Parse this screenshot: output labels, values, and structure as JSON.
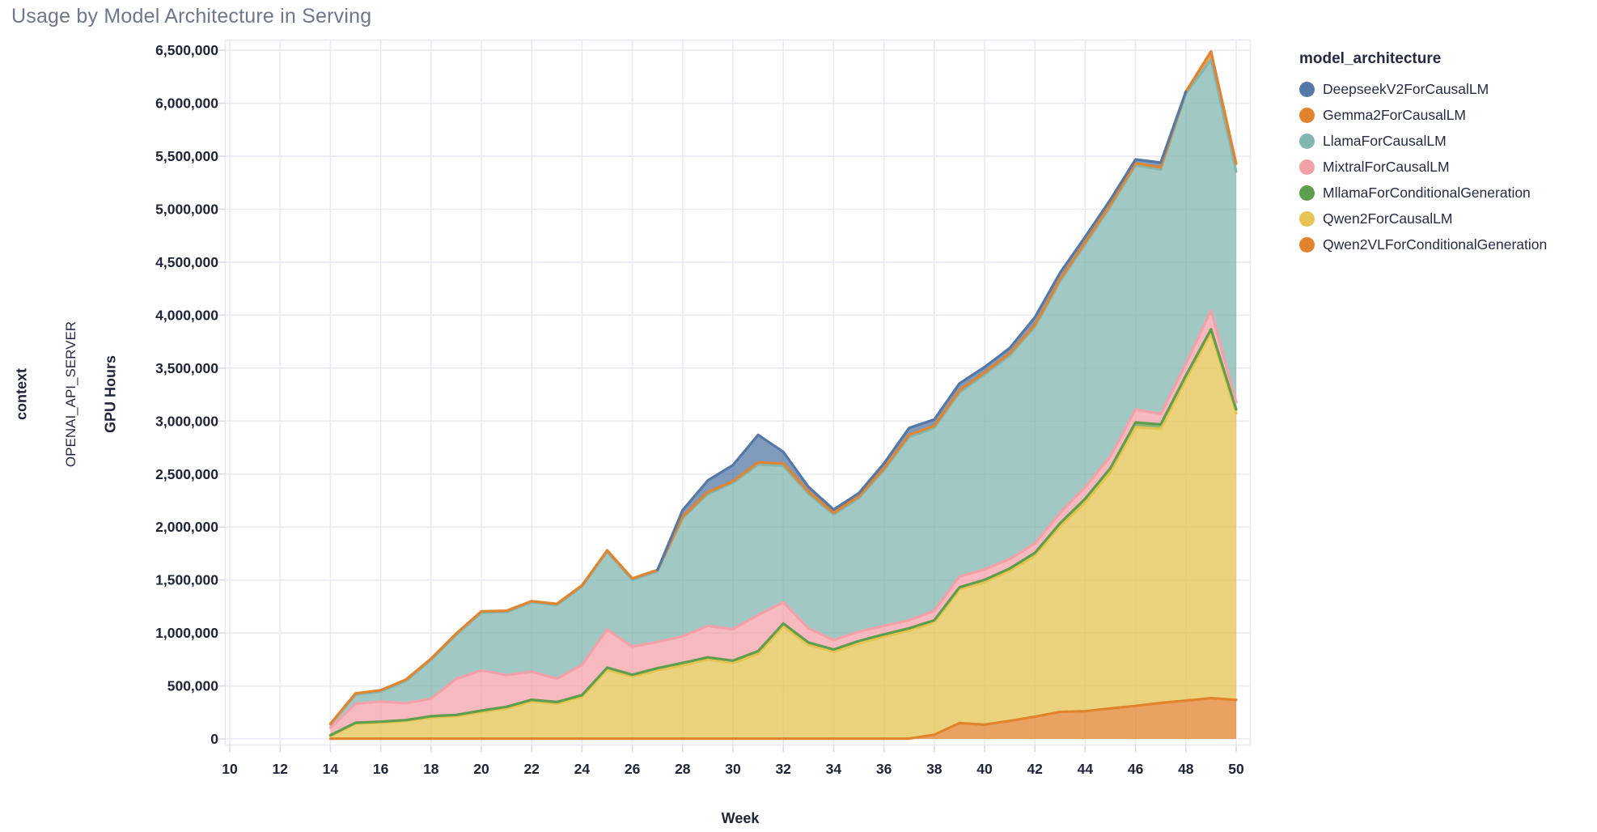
{
  "title": "Usage by Model Architecture in Serving",
  "facet": {
    "row_field": "context",
    "row_value": "OPENAI_API_SERVER"
  },
  "theme": {
    "background": "#ffffff",
    "grid_color": "#E9EAF2",
    "tick_color": "#D9DBE8",
    "axis_text_color": "#20253A",
    "title_color": "#6E7790",
    "fill_opacity": 0.75
  },
  "chart_data": {
    "type": "area",
    "stacked": true,
    "title": "Usage by Model Architecture in Serving",
    "xlabel": "Week",
    "ylabel": "GPU Hours",
    "legend_title": "model_architecture",
    "legend_position": "top-right",
    "grid": true,
    "xlim": [
      9.8,
      50.6
    ],
    "ylim": [
      0,
      6500000
    ],
    "x_axis_ticks": [
      10,
      12,
      14,
      16,
      18,
      20,
      22,
      24,
      26,
      28,
      30,
      32,
      34,
      36,
      38,
      40,
      42,
      44,
      46,
      48,
      50
    ],
    "y_axis_ticks": [
      {
        "v": 0,
        "label": "0"
      },
      {
        "v": 500000,
        "label": "500,000"
      },
      {
        "v": 1000000,
        "label": "1,000,000"
      },
      {
        "v": 1500000,
        "label": "1,500,000"
      },
      {
        "v": 2000000,
        "label": "2,000,000"
      },
      {
        "v": 2500000,
        "label": "2,500,000"
      },
      {
        "v": 3000000,
        "label": "3,000,000"
      },
      {
        "v": 3500000,
        "label": "3,500,000"
      },
      {
        "v": 4000000,
        "label": "4,000,000"
      },
      {
        "v": 4500000,
        "label": "4,500,000"
      },
      {
        "v": 5000000,
        "label": "5,000,000"
      },
      {
        "v": 5500000,
        "label": "5,500,000"
      },
      {
        "v": 6000000,
        "label": "6,000,000"
      },
      {
        "v": 6500000,
        "label": "6,500,000"
      }
    ],
    "x": [
      14,
      15,
      16,
      17,
      18,
      19,
      20,
      21,
      22,
      23,
      24,
      25,
      26,
      27,
      28,
      29,
      30,
      31,
      32,
      33,
      34,
      35,
      36,
      37,
      38,
      39,
      40,
      41,
      42,
      43,
      44,
      45,
      46,
      47,
      48,
      49,
      50
    ],
    "stack_bottom_to_top": [
      "Qwen2VLForConditionalGeneration",
      "Qwen2ForCausalLM",
      "MllamaForConditionalGeneration",
      "MixtralForCausalLM",
      "LlamaForCausalLM",
      "Gemma2ForCausalLM",
      "DeepseekV2ForCausalLM"
    ],
    "series": [
      {
        "name": "DeepseekV2ForCausalLM",
        "color": "#5578A6",
        "values": [
          null,
          null,
          null,
          null,
          null,
          null,
          null,
          null,
          null,
          null,
          null,
          null,
          null,
          0,
          60000,
          110000,
          152000,
          260000,
          110000,
          45000,
          30000,
          30000,
          45000,
          65000,
          60000,
          65000,
          50000,
          50000,
          70000,
          60000,
          50000,
          45000,
          35000,
          45000,
          0,
          null,
          null
        ]
      },
      {
        "name": "Gemma2ForCausalLM",
        "color": "#E2832E",
        "values": [
          8000,
          12000,
          12000,
          12000,
          13000,
          13000,
          13000,
          12000,
          10000,
          12000,
          11000,
          12000,
          14000,
          14000,
          16000,
          18000,
          17000,
          20000,
          21000,
          21000,
          17000,
          17000,
          18000,
          20000,
          20000,
          20000,
          20000,
          20000,
          20000,
          20000,
          20000,
          20000,
          20000,
          20000,
          20000,
          80000,
          75000
        ]
      },
      {
        "name": "LlamaForCausalLM",
        "color": "#83B6B0",
        "values": [
          30000,
          85000,
          95000,
          210000,
          365000,
          415000,
          545000,
          595000,
          655000,
          695000,
          740000,
          735000,
          630000,
          665000,
          1115000,
          1245000,
          1380000,
          1420000,
          1290000,
          1270000,
          1185000,
          1260000,
          1470000,
          1730000,
          1726000,
          1737000,
          1840000,
          1922000,
          2046000,
          2187000,
          2292000,
          2358000,
          2304000,
          2308000,
          2550000,
          2366000,
          2177000
        ]
      },
      {
        "name": "MixtralForCausalLM",
        "color": "#F3A1A9",
        "values": [
          70000,
          180000,
          190000,
          160000,
          165000,
          340000,
          380000,
          300000,
          265000,
          220000,
          285000,
          360000,
          265000,
          248000,
          252000,
          297000,
          297000,
          341000,
          200000,
          133000,
          89000,
          89000,
          80000,
          76000,
          89000,
          102000,
          98000,
          89000,
          88000,
          97000,
          111000,
          111000,
          124000,
          98000,
          110000,
          177000,
          67000
        ]
      },
      {
        "name": "MllamaForConditionalGeneration",
        "color": "#5E9E4D",
        "values": [
          8000,
          10000,
          10000,
          10000,
          12000,
          12000,
          14000,
          15000,
          17000,
          15000,
          16000,
          20000,
          18000,
          20000,
          24000,
          22000,
          24000,
          26000,
          26000,
          23000,
          21000,
          21000,
          22000,
          21000,
          20000,
          21000,
          22000,
          24000,
          26000,
          31000,
          35000,
          38000,
          45000,
          44000,
          38000,
          37000,
          38000
        ]
      },
      {
        "name": "Qwen2ForCausalLM",
        "color": "#E4C452",
        "values": [
          25000,
          140000,
          150000,
          165000,
          200000,
          212000,
          250000,
          285000,
          350000,
          330000,
          395000,
          650000,
          585000,
          645000,
          690000,
          745000,
          712000,
          800000,
          1060000,
          885000,
          820000,
          900000,
          962000,
          1020000,
          1060000,
          1260000,
          1345000,
          1415000,
          1520000,
          1750000,
          1970000,
          2230000,
          2630000,
          2585000,
          3030000,
          3445000,
          2705000
        ]
      },
      {
        "name": "Qwen2VLForConditionalGeneration",
        "color": "#E2832E",
        "values": [
          2000,
          3000,
          3000,
          3000,
          3000,
          3000,
          3000,
          3000,
          3000,
          3000,
          3000,
          3000,
          3000,
          3000,
          3000,
          3000,
          3000,
          3000,
          3000,
          3000,
          3000,
          3000,
          3000,
          3000,
          40000,
          150000,
          135000,
          170000,
          210000,
          255000,
          262000,
          288000,
          312000,
          340000,
          362000,
          385000,
          368000
        ]
      }
    ]
  }
}
